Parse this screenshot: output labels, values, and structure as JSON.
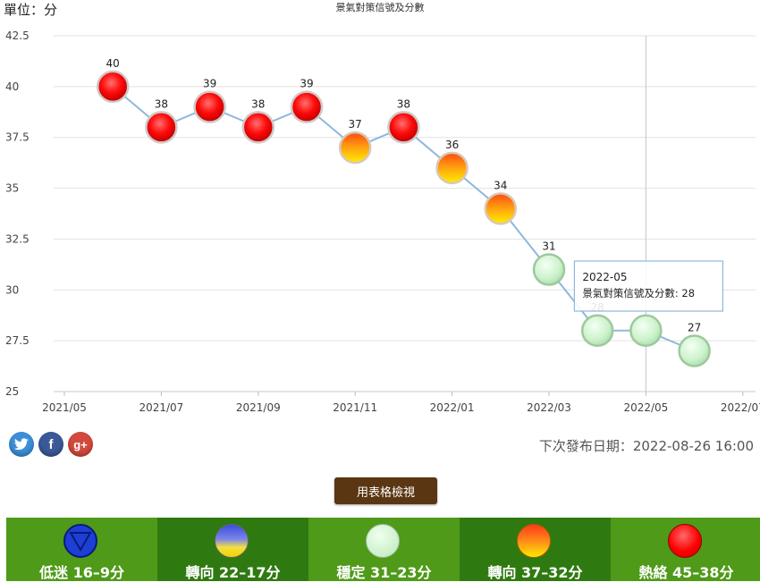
{
  "header": {
    "unit_label": "單位：分",
    "title": "景氣對策信號及分數"
  },
  "chart_data": {
    "type": "line",
    "title": "景氣對策信號及分數",
    "ylabel": "單位：分",
    "ylim": [
      25,
      42.5
    ],
    "y_ticks": [
      "25",
      "27.5",
      "30",
      "32.5",
      "35",
      "37.5",
      "40",
      "42.5"
    ],
    "y_tick_values": [
      25,
      27.5,
      30,
      32.5,
      35,
      37.5,
      40,
      42.5
    ],
    "x_ticks": [
      "2021/05",
      "2021/07",
      "2021/09",
      "2021/11",
      "2022/01",
      "2022/03",
      "2022/05",
      "2022/07"
    ],
    "grid": true,
    "series": [
      {
        "points": [
          {
            "x": "2021-06",
            "y": 40,
            "signal": "red"
          },
          {
            "x": "2021-07",
            "y": 38,
            "signal": "red"
          },
          {
            "x": "2021-08",
            "y": 39,
            "signal": "red"
          },
          {
            "x": "2021-09",
            "y": 38,
            "signal": "red"
          },
          {
            "x": "2021-10",
            "y": 39,
            "signal": "red"
          },
          {
            "x": "2021-11",
            "y": 37,
            "signal": "yellow-red"
          },
          {
            "x": "2021-12",
            "y": 38,
            "signal": "red"
          },
          {
            "x": "2022-01",
            "y": 36,
            "signal": "yellow-red"
          },
          {
            "x": "2022-02",
            "y": 34,
            "signal": "yellow-red"
          },
          {
            "x": "2022-03",
            "y": 31,
            "signal": "green"
          },
          {
            "x": "2022-04",
            "y": 28,
            "signal": "green"
          },
          {
            "x": "2022-05",
            "y": 28,
            "signal": "green"
          },
          {
            "x": "2022-06",
            "y": 27,
            "signal": "green"
          }
        ]
      }
    ],
    "tooltip": {
      "date": "2022-05",
      "text": "景氣對策信號及分數: 28"
    }
  },
  "colors": {
    "line": "#8fb8dc",
    "grid": "#e2e2e2",
    "crosshair": "#b9c6d4",
    "tooltip_border": "#8fb8dc"
  },
  "share": {
    "twitter_icon": "twitter-icon",
    "facebook_icon": "facebook-icon",
    "googleplus_icon": "google-plus-icon",
    "facebook_glyph": "f",
    "googleplus_glyph": "g+"
  },
  "next_release": "下次發布日期：2022-08-26 16:00",
  "table_view_button": "用表格檢視",
  "legend": [
    {
      "label": "低迷 16–9分",
      "signal": "blue",
      "icon": "down-triangle-icon"
    },
    {
      "label": "轉向 22–17分",
      "signal": "yellow-blue",
      "icon": "yellow-blue-light-icon"
    },
    {
      "label": "穩定 31–23分",
      "signal": "green",
      "icon": "green-light-icon"
    },
    {
      "label": "轉向 37–32分",
      "signal": "yellow-red",
      "icon": "yellow-red-light-icon"
    },
    {
      "label": "熱絡 45–38分",
      "signal": "red",
      "icon": "red-light-icon"
    }
  ]
}
